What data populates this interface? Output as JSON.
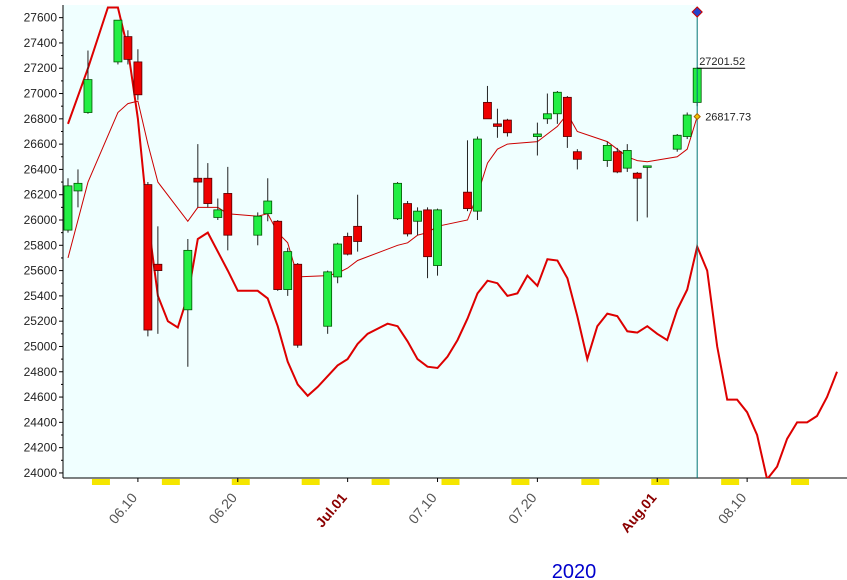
{
  "chart_data": {
    "type": "candlestick",
    "x": [
      "06.03",
      "06.04",
      "06.05",
      "06.08",
      "06.09",
      "06.10",
      "06.11",
      "06.12",
      "06.15",
      "06.16",
      "06.17",
      "06.18",
      "06.19",
      "06.22",
      "06.23",
      "06.24",
      "06.25",
      "06.26",
      "06.29",
      "06.30",
      "07.01",
      "07.02",
      "07.06",
      "07.07",
      "07.08",
      "07.09",
      "07.10",
      "07.13",
      "07.14",
      "07.15",
      "07.16",
      "07.17",
      "07.20",
      "07.21",
      "07.22",
      "07.23",
      "07.24",
      "07.27",
      "07.28",
      "07.29",
      "07.30",
      "07.31",
      "08.03",
      "08.04",
      "08.05"
    ],
    "open": [
      25920,
      26230,
      26850,
      27250,
      27450,
      27250,
      26280,
      25650,
      25290,
      26330,
      26330,
      26020,
      26210,
      25880,
      26050,
      25990,
      25450,
      25650,
      25160,
      25550,
      25870,
      25950,
      26010,
      26130,
      25990,
      26080,
      25640,
      26220,
      26070,
      26930,
      26760,
      26790,
      26660,
      26800,
      26840,
      26970,
      26540,
      26470,
      26540,
      26410,
      26370,
      26420,
      26560,
      26660,
      26930
    ],
    "high": [
      26330,
      26400,
      27340,
      27580,
      27500,
      27350,
      26300,
      25950,
      25850,
      26600,
      26450,
      26170,
      26420,
      26060,
      26330,
      26000,
      25780,
      25660,
      25600,
      25820,
      25900,
      26200,
      26300,
      26150,
      26100,
      26100,
      26090,
      26630,
      26660,
      27060,
      26880,
      26800,
      26770,
      27000,
      27020,
      26980,
      26560,
      26620,
      26570,
      26600,
      26380,
      26430,
      26680,
      26850,
      27210
    ],
    "low": [
      25900,
      26100,
      26840,
      27230,
      27230,
      26950,
      25080,
      25100,
      24840,
      26100,
      26100,
      26000,
      25760,
      25800,
      25990,
      25440,
      25400,
      24990,
      25100,
      25500,
      25720,
      25750,
      26000,
      25870,
      25880,
      25540,
      25560,
      26070,
      26000,
      26800,
      26650,
      26660,
      26510,
      26760,
      26760,
      26570,
      26400,
      26420,
      26370,
      26380,
      25990,
      26020,
      26540,
      26640,
      26900
    ],
    "close": [
      26270,
      26290,
      27110,
      27580,
      27270,
      26990,
      25130,
      25600,
      25760,
      26300,
      26130,
      26080,
      25880,
      26030,
      26150,
      25450,
      25750,
      25010,
      25590,
      25810,
      25730,
      25830,
      26290,
      25890,
      26070,
      25710,
      26080,
      26090,
      26640,
      26800,
      26740,
      26690,
      26680,
      26840,
      27010,
      26660,
      26480,
      26590,
      26380,
      26550,
      26330,
      26428,
      26670,
      26830,
      27200
    ],
    "up_color": "#22ee44",
    "down_color": "#ee0000",
    "ma": {
      "color": "#cc0000",
      "values": [
        25700,
        26000,
        26300,
        26850,
        26920,
        26940,
        26600,
        26300,
        25990,
        26100,
        26100,
        26100,
        26050,
        26030,
        26050,
        25900,
        25820,
        25550,
        25560,
        25580,
        25620,
        25680,
        25800,
        25820,
        25880,
        25900,
        25950,
        26000,
        26200,
        26450,
        26560,
        26600,
        26620,
        26680,
        26740,
        26840,
        26700,
        26620,
        26560,
        26500,
        26470,
        26460,
        26500,
        26560,
        26817.73
      ]
    },
    "lead_line": {
      "color": "#dd0000",
      "x": [
        "06.03",
        "06.05",
        "06.07",
        "06.08",
        "06.09",
        "06.10",
        "06.11",
        "06.12",
        "06.13",
        "06.14",
        "06.15",
        "06.16",
        "06.17",
        "06.19",
        "06.20",
        "06.22",
        "06.23",
        "06.24",
        "06.25",
        "06.26",
        "06.27",
        "06.28",
        "06.30",
        "07.01",
        "07.02",
        "07.03",
        "07.05",
        "07.06",
        "07.07",
        "07.08",
        "07.09",
        "07.10",
        "07.11",
        "07.12",
        "07.13",
        "07.14",
        "07.15",
        "07.16",
        "07.17",
        "07.18",
        "07.19",
        "07.20",
        "07.21",
        "07.22",
        "07.23",
        "07.24",
        "07.25",
        "07.26",
        "07.27",
        "07.28",
        "07.29",
        "07.30",
        "07.31",
        "08.01",
        "08.02",
        "08.03",
        "08.04",
        "08.05",
        "08.06",
        "08.07",
        "08.08",
        "08.09",
        "08.10",
        "08.11",
        "08.12",
        "08.13",
        "08.14",
        "08.15",
        "08.16",
        "08.17",
        "08.18",
        "08.19"
      ],
      "values": [
        26760,
        27200,
        27680,
        27680,
        27350,
        26800,
        26000,
        25400,
        25200,
        25150,
        25400,
        25850,
        25900,
        25600,
        25440,
        25440,
        25380,
        25160,
        24880,
        24700,
        24610,
        24680,
        24850,
        24900,
        25020,
        25100,
        25180,
        25160,
        25040,
        24900,
        24840,
        24830,
        24920,
        25050,
        25220,
        25420,
        25520,
        25500,
        25400,
        25420,
        25560,
        25480,
        25690,
        25680,
        25540,
        25240,
        24900,
        25160,
        25260,
        25240,
        25120,
        25110,
        25160,
        25100,
        25050,
        25290,
        25450,
        25790,
        25600,
        25000,
        24580,
        24580,
        24480,
        24300,
        23950,
        24050,
        24270,
        24400,
        24400,
        24450,
        24600,
        24800
      ]
    },
    "xlim": [
      "06.02",
      "08.20"
    ],
    "xticks": [
      "06.10",
      "06.20",
      {
        "value": "07.01",
        "label": "Jul.01"
      },
      "07.10",
      "07.20",
      {
        "value": "08.01",
        "label": "Aug.01"
      },
      "08.10"
    ],
    "ylim": [
      23960,
      27700
    ],
    "yticks": [
      24000,
      24200,
      24400,
      24600,
      24800,
      25000,
      25200,
      25400,
      25600,
      25800,
      26000,
      26200,
      26400,
      26600,
      26800,
      27000,
      27200,
      27400,
      27600
    ],
    "annotations": [
      "27201.52",
      "26817.73"
    ],
    "year": "2020"
  }
}
